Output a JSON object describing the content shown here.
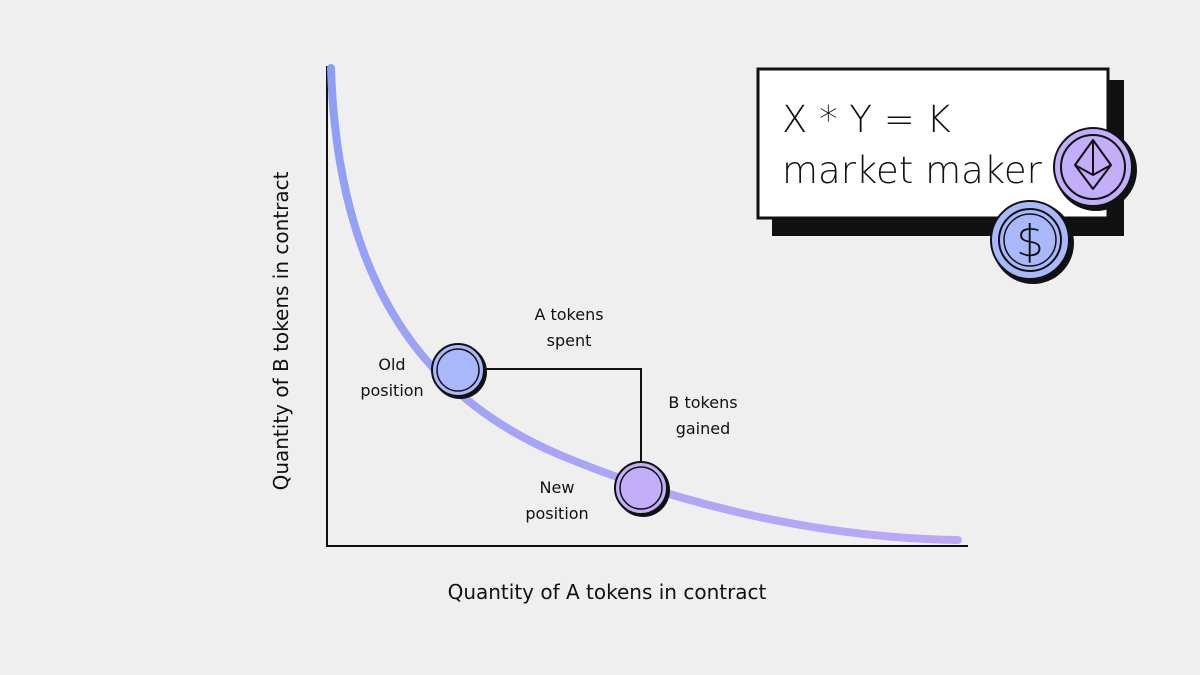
{
  "title_box": {
    "line1": "X * Y = K",
    "line2": "market maker"
  },
  "axes": {
    "x_label": "Quantity of A tokens in contract",
    "y_label": "Quantity of  B tokens in contract"
  },
  "labels": {
    "old_position": [
      "Old",
      "position"
    ],
    "new_position": [
      "New",
      "position"
    ],
    "a_spent": [
      "A tokens",
      "spent"
    ],
    "b_gained": [
      "B tokens",
      "gained"
    ]
  },
  "icons": {
    "coin_top": "ethereum-icon",
    "coin_bottom": "dollar-icon"
  },
  "colors": {
    "background": "#efefef",
    "curve_start": "#8b9ef6",
    "curve_end": "#bca9f6",
    "old_coin": "#a9b8fa",
    "new_coin": "#c2aef9",
    "ink": "#111111"
  }
}
